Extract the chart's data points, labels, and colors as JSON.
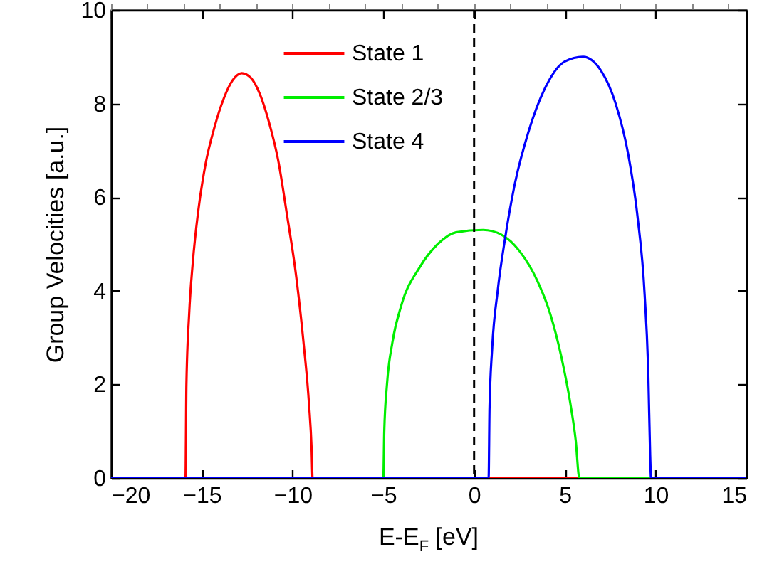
{
  "chart_data": {
    "type": "line",
    "xlabel": "E-E$_{F}$ [eV]",
    "ylabel": "Group Velocities [a.u.]",
    "xlim": [
      -20,
      15
    ],
    "xticks": [
      -20,
      -15,
      -10,
      -5,
      0,
      5,
      10,
      15
    ],
    "ylim": [
      0,
      10
    ],
    "yticks": [
      0,
      2,
      4,
      6,
      8,
      10
    ],
    "grid": false,
    "legend": "top",
    "line_style": "solid",
    "marker": "none",
    "series": [
      {
        "name": "State 1",
        "color": "#ff0000",
        "x": [
          -20,
          -15.9,
          -15.85,
          -15.7,
          -15.5,
          -15.2,
          -14.8,
          -14.3,
          -13.8,
          -13.3,
          -12.8,
          -12.3,
          -11.8,
          -11.3,
          -10.8,
          -10.3,
          -9.8,
          -9.4,
          -9.1,
          -8.95,
          -8.9,
          15
        ],
        "values": [
          0,
          0,
          2,
          3.5,
          4.6,
          5.7,
          6.7,
          7.5,
          8.1,
          8.5,
          8.65,
          8.55,
          8.2,
          7.6,
          6.8,
          5.6,
          4.3,
          2.9,
          1.6,
          0.6,
          0,
          0
        ]
      },
      {
        "name": "State 2/3",
        "color": "#00ee00",
        "x": [
          -20,
          -5,
          -4.95,
          -4.8,
          -4.5,
          -4,
          -3,
          -2,
          -1,
          0.5,
          1.5,
          2.5,
          3.5,
          4.2,
          4.8,
          5.3,
          5.6,
          5.8,
          15
        ],
        "values": [
          0,
          0,
          1,
          2,
          2.9,
          3.7,
          4.5,
          5,
          5.25,
          5.3,
          5.2,
          4.85,
          4.2,
          3.5,
          2.6,
          1.6,
          0.8,
          0,
          0
        ]
      },
      {
        "name": "State 4",
        "color": "#0000ff",
        "x": [
          -20,
          0.8,
          0.85,
          1,
          1.3,
          1.7,
          2.2,
          3,
          4,
          5,
          6,
          7,
          7.8,
          8.5,
          9,
          9.4,
          9.6,
          9.7,
          9.75,
          15
        ],
        "values": [
          0,
          0,
          1.5,
          2.8,
          4,
          5.1,
          6.2,
          7.4,
          8.4,
          8.9,
          9,
          8.7,
          8,
          6.9,
          5.6,
          3.9,
          2.2,
          0.5,
          0,
          0
        ]
      }
    ],
    "ref_lines": [
      {
        "axis": "x",
        "value": 0,
        "color": "#000000",
        "line_style": "dashed"
      }
    ]
  }
}
